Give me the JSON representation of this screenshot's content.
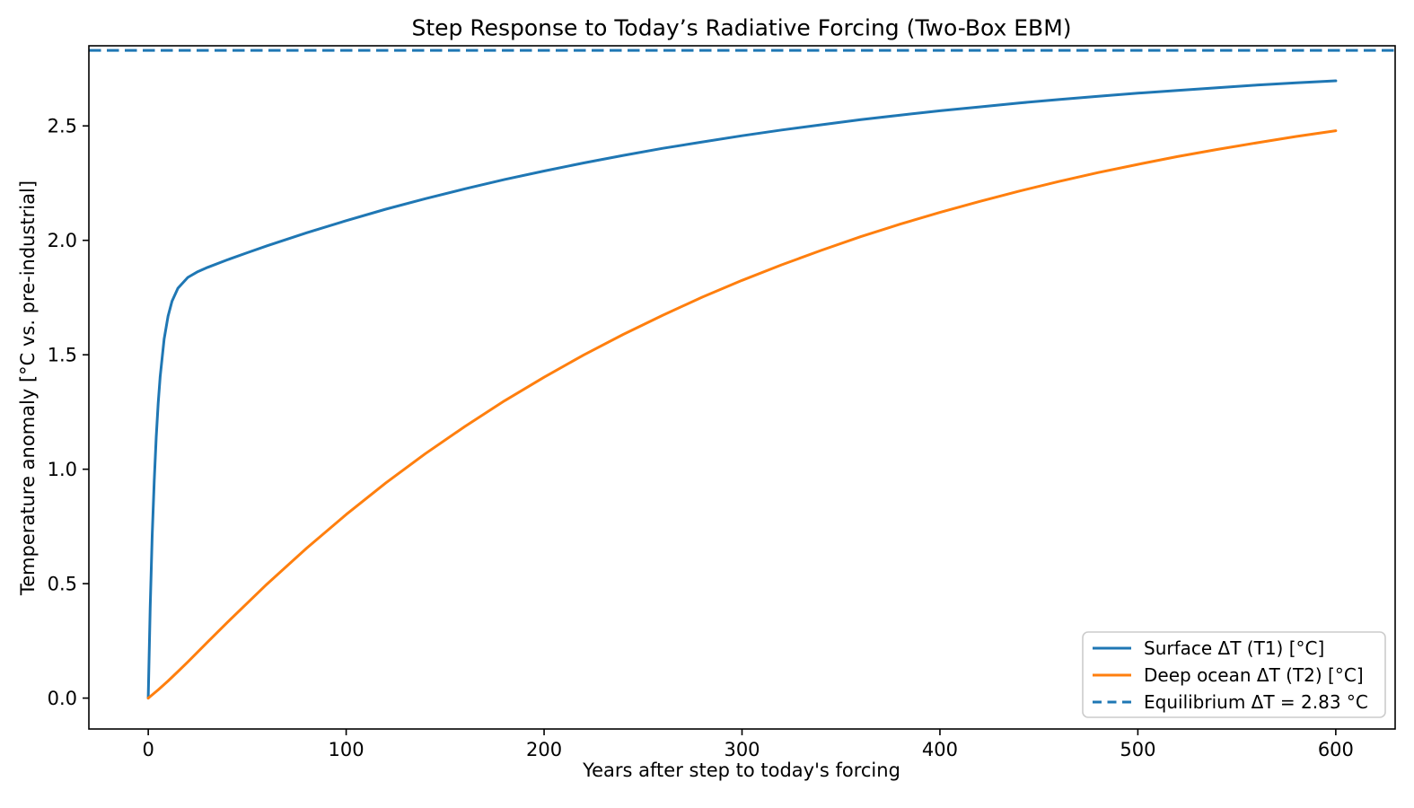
{
  "colors": {
    "surface_line": "#1f77b4",
    "deep_ocean_line": "#ff7f0e",
    "equilibrium_line": "#1f77b4",
    "axis": "#000000",
    "legend_border": "#cccccc",
    "background": "#ffffff"
  },
  "legend": {
    "position": "lower-right",
    "entries": [
      {
        "label": "Surface ΔT (T1) [°C]",
        "color": "#1f77b4",
        "dashed": false
      },
      {
        "label": "Deep ocean ΔT (T2) [°C]",
        "color": "#ff7f0e",
        "dashed": false
      },
      {
        "label": "Equilibrium ΔT = 2.83 °C",
        "color": "#1f77b4",
        "dashed": true
      }
    ]
  },
  "chart_data": {
    "type": "line",
    "title": "Step Response to Today’s Radiative Forcing (Two-Box EBM)",
    "xlabel": "Years after step to today's forcing",
    "ylabel": "Temperature anomaly [°C vs. pre-industrial]",
    "xlim": [
      -30,
      630
    ],
    "ylim": [
      -0.135,
      2.85
    ],
    "grid": false,
    "legend_position": "lower right",
    "xticks": {
      "values": [
        0,
        100,
        200,
        300,
        400,
        500,
        600
      ],
      "labels": [
        "0",
        "100",
        "200",
        "300",
        "400",
        "500",
        "600"
      ]
    },
    "yticks": {
      "values": [
        0.0,
        0.5,
        1.0,
        1.5,
        2.0,
        2.5
      ],
      "labels": [
        "0.0",
        "0.5",
        "1.0",
        "1.5",
        "2.0",
        "2.5"
      ]
    },
    "equilibrium": {
      "value": 2.83,
      "label": "Equilibrium ΔT = 2.83 °C",
      "color": "#1f77b4",
      "style": "dashed"
    },
    "series": [
      {
        "name": "Surface ΔT (T1) [°C]",
        "color": "#1f77b4",
        "style": "solid",
        "x": [
          0,
          1,
          2,
          3,
          4,
          5,
          6,
          8,
          10,
          12,
          15,
          20,
          25,
          30,
          40,
          50,
          60,
          80,
          100,
          120,
          140,
          160,
          180,
          200,
          220,
          240,
          260,
          280,
          300,
          320,
          340,
          360,
          380,
          400,
          420,
          440,
          460,
          480,
          500,
          520,
          540,
          560,
          580,
          600
        ],
        "y": [
          0.0,
          0.397,
          0.708,
          0.95,
          1.14,
          1.288,
          1.404,
          1.568,
          1.669,
          1.734,
          1.791,
          1.838,
          1.863,
          1.882,
          1.915,
          1.946,
          1.976,
          2.033,
          2.086,
          2.136,
          2.182,
          2.225,
          2.266,
          2.303,
          2.338,
          2.371,
          2.402,
          2.43,
          2.457,
          2.482,
          2.505,
          2.527,
          2.547,
          2.566,
          2.583,
          2.6,
          2.615,
          2.629,
          2.643,
          2.655,
          2.667,
          2.678,
          2.688,
          2.697
        ]
      },
      {
        "name": "Deep ocean ΔT (T2) [°C]",
        "color": "#ff7f0e",
        "style": "solid",
        "x": [
          0,
          2,
          5,
          10,
          15,
          20,
          30,
          40,
          50,
          60,
          80,
          100,
          120,
          140,
          160,
          180,
          200,
          220,
          240,
          260,
          280,
          300,
          320,
          340,
          360,
          380,
          400,
          420,
          440,
          460,
          480,
          500,
          520,
          540,
          560,
          580,
          600
        ],
        "y": [
          0.0,
          0.014,
          0.036,
          0.075,
          0.116,
          0.158,
          0.245,
          0.331,
          0.415,
          0.498,
          0.655,
          0.802,
          0.94,
          1.068,
          1.187,
          1.299,
          1.402,
          1.499,
          1.589,
          1.673,
          1.752,
          1.825,
          1.893,
          1.956,
          2.016,
          2.071,
          2.122,
          2.17,
          2.215,
          2.257,
          2.296,
          2.332,
          2.366,
          2.397,
          2.426,
          2.454,
          2.479
        ]
      }
    ]
  }
}
